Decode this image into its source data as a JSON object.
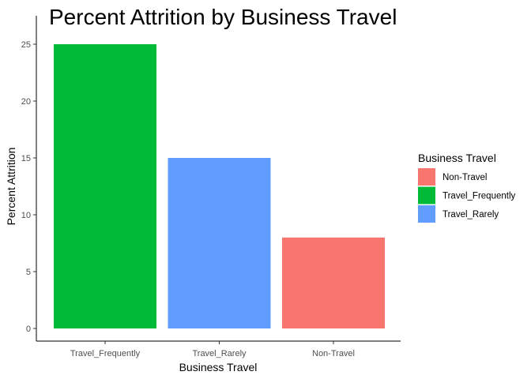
{
  "chart_data": {
    "type": "bar",
    "title": "Percent Attrition by Business Travel",
    "xlabel": "Business Travel",
    "ylabel": "Percent Attrition",
    "categories": [
      "Travel_Frequently",
      "Travel_Rarely",
      "Non-Travel"
    ],
    "values": [
      25,
      15,
      8
    ],
    "bar_fill_group": [
      "Travel_Frequently",
      "Travel_Rarely",
      "Non-Travel"
    ],
    "ylim": [
      0,
      25
    ],
    "yticks": [
      0,
      5,
      10,
      15,
      20,
      25
    ],
    "grid": false,
    "legend": {
      "title": "Business Travel",
      "placement": "right",
      "entries": [
        {
          "label": "Non-Travel",
          "color": "#F8766D"
        },
        {
          "label": "Travel_Frequently",
          "color": "#00BA38"
        },
        {
          "label": "Travel_Rarely",
          "color": "#619CFF"
        }
      ]
    }
  }
}
